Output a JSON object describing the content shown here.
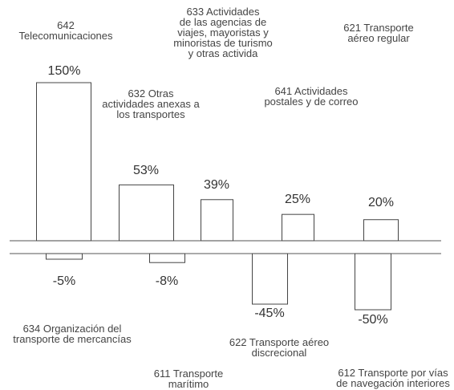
{
  "chart_data": [
    {
      "type": "bar",
      "categories": [
        "642\nTelecomunicaciones",
        "632 Otras\nactividades anexas a\nlos transportes",
        "633 Actividades\nde las agencias de\nviajes, mayoristas y\nminoristas de turismo\ny otras activida",
        "641 Actividades\npostales y de correo",
        "621 Transporte\naéreo regular"
      ],
      "values": [
        150,
        53,
        39,
        25,
        20
      ],
      "value_labels": [
        "150%",
        "53%",
        "39%",
        "25%",
        "20%"
      ],
      "ylim": [
        0,
        150
      ],
      "color": "#ffffff"
    },
    {
      "type": "bar",
      "categories": [
        "634 Organización del\ntransporte de mercancías",
        "611 Transporte\nmarítimo",
        "622 Transporte aéreo\ndiscrecional",
        "612 Transporte por vías\nde navegación interiores"
      ],
      "values": [
        -5,
        -8,
        -45,
        -50
      ],
      "value_labels": [
        "-5%",
        "-8%",
        "-45%",
        "-50%"
      ],
      "ylim": [
        -50,
        0
      ],
      "color": "#ffffff"
    }
  ]
}
